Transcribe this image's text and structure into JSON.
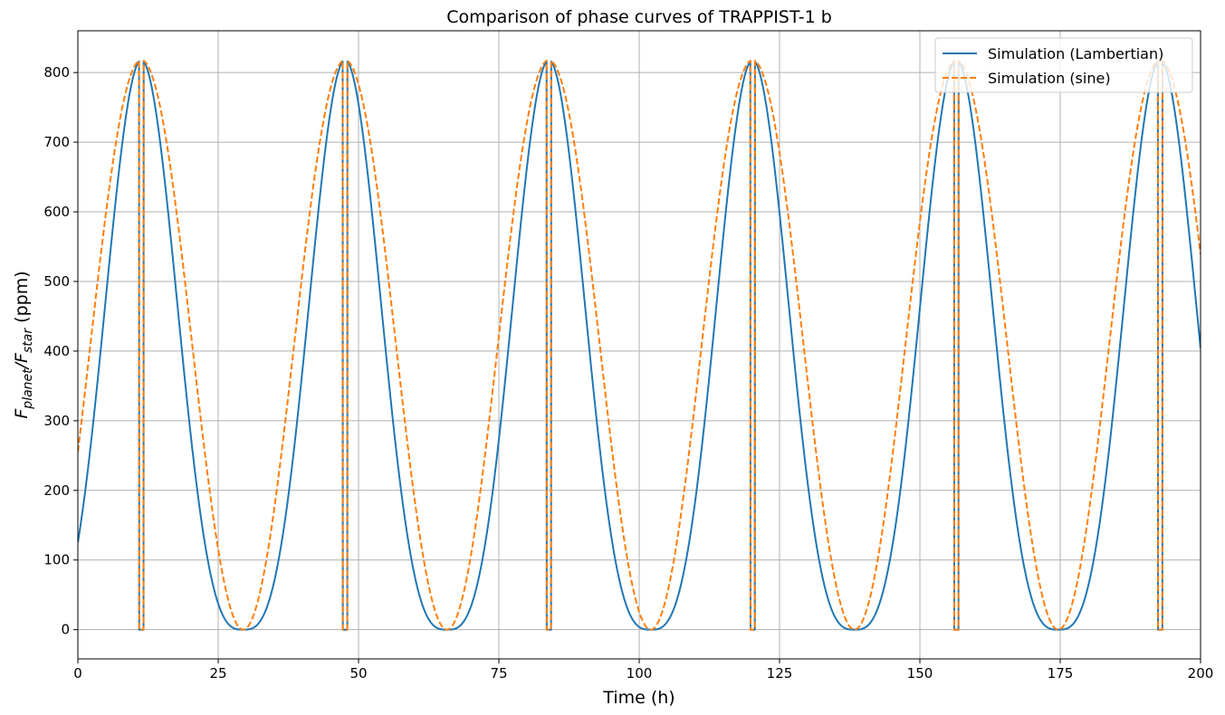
{
  "chart_data": {
    "type": "line",
    "title": "Comparison of phase curves of TRAPPIST-1 b",
    "xlabel": "Time (h)",
    "ylabel": {
      "main": "F",
      "sub1": "planet",
      "sep": "/F",
      "sub2": "star",
      "unit": " (ppm)"
    },
    "xlim": [
      0,
      200
    ],
    "ylim": [
      -42,
      860
    ],
    "xticks": [
      "0",
      "25",
      "50",
      "75",
      "100",
      "125",
      "150",
      "175",
      "200"
    ],
    "yticks": [
      "0",
      "100",
      "200",
      "300",
      "400",
      "500",
      "600",
      "700",
      "800"
    ],
    "grid": true,
    "legend_position": "top-right",
    "period_h": 36.3,
    "peak_times_h": [
      11.3,
      47.6,
      83.9,
      120.2,
      156.5,
      192.8
    ],
    "amplitude_ppm": 818,
    "eclipse_halfwidth_h": 0.4,
    "series": [
      {
        "name": "Simulation (Lambertian)",
        "model": "lambertian",
        "color": "#1f77b4",
        "dash": "solid",
        "endpoints": [
          {
            "x": 0,
            "y": 123
          },
          {
            "x": 200,
            "y": 392
          }
        ]
      },
      {
        "name": "Simulation (sine)",
        "model": "sine",
        "color": "#ff7f0e",
        "dash": "dashed",
        "endpoints": [
          {
            "x": 0,
            "y": 262
          },
          {
            "x": 200,
            "y": 535
          }
        ]
      }
    ]
  }
}
